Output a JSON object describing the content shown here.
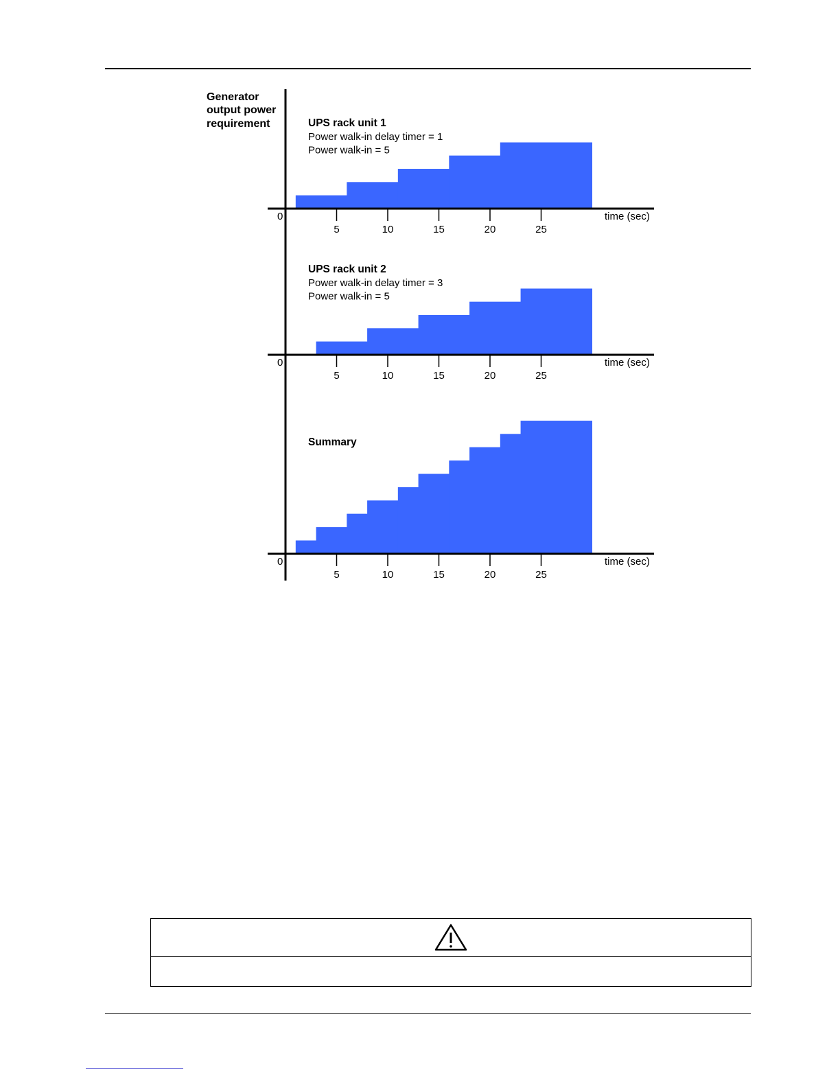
{
  "chart_data": {
    "type": "area",
    "ylabel": [
      "Generator",
      "output power",
      "requirement"
    ],
    "xlabel": "time (sec)",
    "x_origin_label": "0",
    "xlim": [
      0,
      30
    ],
    "xticks": [
      5,
      10,
      15,
      20,
      25
    ],
    "panels": [
      {
        "title": "UPS rack unit 1",
        "notes": [
          "Power walk-in delay timer = 1",
          "Power walk-in = 5"
        ],
        "steps": [
          {
            "from": 1,
            "to": 6,
            "level": 1
          },
          {
            "from": 6,
            "to": 11,
            "level": 2
          },
          {
            "from": 11,
            "to": 16,
            "level": 3
          },
          {
            "from": 16,
            "to": 21,
            "level": 4
          },
          {
            "from": 21,
            "to": 30,
            "level": 5
          }
        ],
        "max_level": 10
      },
      {
        "title": "UPS rack unit 2",
        "notes": [
          "Power walk-in delay timer = 3",
          "Power walk-in = 5"
        ],
        "steps": [
          {
            "from": 3,
            "to": 8,
            "level": 1
          },
          {
            "from": 8,
            "to": 13,
            "level": 2
          },
          {
            "from": 13,
            "to": 18,
            "level": 3
          },
          {
            "from": 18,
            "to": 23,
            "level": 4
          },
          {
            "from": 23,
            "to": 30,
            "level": 5
          }
        ],
        "max_level": 10
      },
      {
        "title": "Summary",
        "notes": [],
        "steps": [
          {
            "from": 1,
            "to": 3,
            "level": 1
          },
          {
            "from": 3,
            "to": 6,
            "level": 2
          },
          {
            "from": 6,
            "to": 8,
            "level": 3
          },
          {
            "from": 8,
            "to": 11,
            "level": 4
          },
          {
            "from": 11,
            "to": 13,
            "level": 5
          },
          {
            "from": 13,
            "to": 16,
            "level": 6
          },
          {
            "from": 16,
            "to": 18,
            "level": 7
          },
          {
            "from": 18,
            "to": 21,
            "level": 8
          },
          {
            "from": 21,
            "to": 23,
            "level": 9
          },
          {
            "from": 23,
            "to": 30,
            "level": 10
          }
        ],
        "max_level": 10
      }
    ],
    "fill_color": "#3a66ff",
    "grid": false
  },
  "caution": {
    "icon": "warning-triangle-icon"
  }
}
